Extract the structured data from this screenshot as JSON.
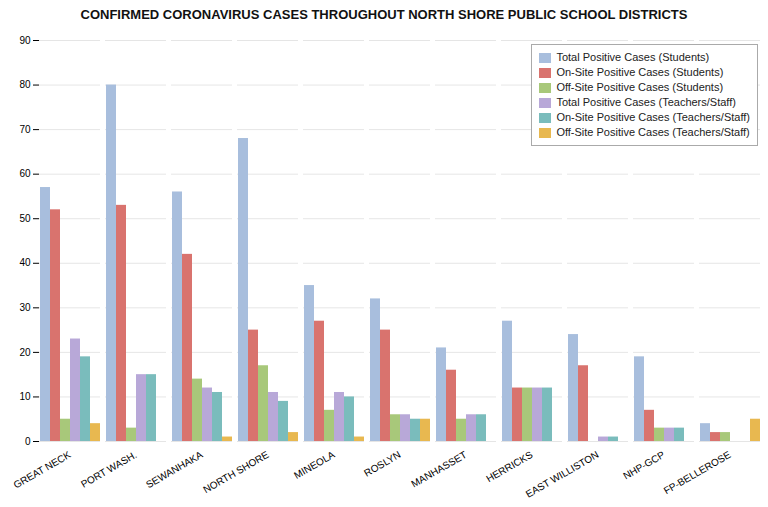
{
  "chart_data": {
    "type": "bar",
    "title": "CONFIRMED CORONAVIRUS CASES THROUGHOUT NORTH SHORE PUBLIC SCHOOL DISTRICTS",
    "categories": [
      "GREAT NECK",
      "PORT WASH.",
      "SEWANHAKA",
      "NORTH SHORE",
      "MINEOLA",
      "ROSLYN",
      "MANHASSET",
      "HERRICKS",
      "EAST WILLISTON",
      "NHP-GCP",
      "FP-BELLEROSE"
    ],
    "series": [
      {
        "name": "Total Positive Cases (Students)",
        "color": "#a8bedd",
        "values": [
          57,
          80,
          56,
          68,
          35,
          32,
          21,
          27,
          24,
          19,
          4
        ]
      },
      {
        "name": "On-Site Positive Cases (Students)",
        "color": "#d9736e",
        "values": [
          52,
          53,
          42,
          25,
          27,
          25,
          16,
          12,
          17,
          7,
          2
        ]
      },
      {
        "name": "Off-Site Positive Cases (Students)",
        "color": "#a8c87a",
        "values": [
          5,
          3,
          14,
          17,
          7,
          6,
          5,
          12,
          0,
          3,
          2
        ]
      },
      {
        "name": "Total Positive Cases (Teachers/Staff)",
        "color": "#b8a8d8",
        "values": [
          23,
          15,
          12,
          11,
          11,
          6,
          6,
          12,
          1,
          3,
          0
        ]
      },
      {
        "name": "On-Site Positive Cases (Teachers/Staff)",
        "color": "#7abcbc",
        "values": [
          19,
          15,
          11,
          9,
          10,
          5,
          6,
          12,
          1,
          3,
          0
        ]
      },
      {
        "name": "Off-Site Positive Cases (Teachers/Staff)",
        "color": "#e8b850",
        "values": [
          4,
          0,
          1,
          2,
          1,
          5,
          0,
          0,
          0,
          0,
          5
        ]
      }
    ],
    "ylim": [
      0,
      90
    ],
    "yticks": [
      0,
      10,
      20,
      30,
      40,
      50,
      60,
      70,
      80,
      90
    ],
    "grid": true,
    "legend": "upper right"
  }
}
